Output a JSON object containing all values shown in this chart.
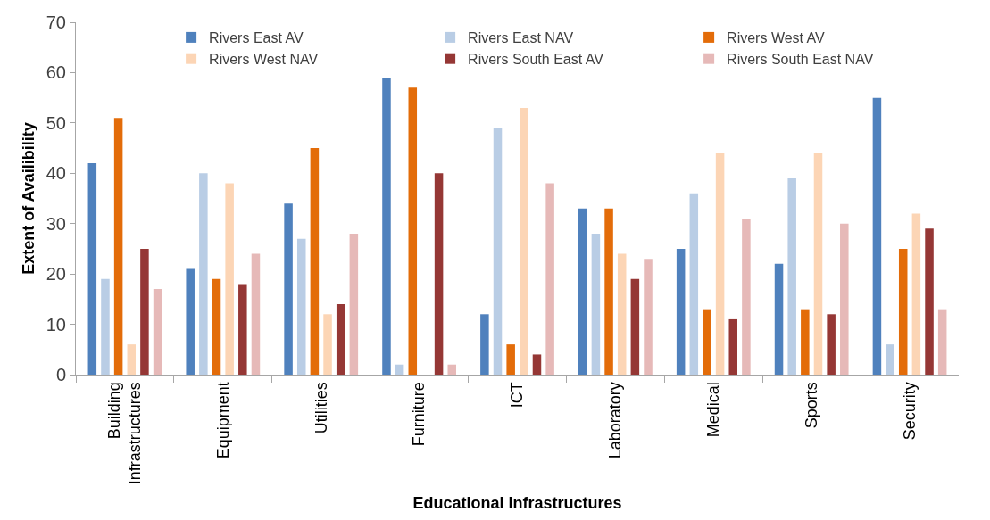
{
  "chart_data": {
    "type": "bar",
    "xlabel": "Educational infrastructures",
    "ylabel": "Extent of Availibility",
    "categories": [
      "Building Infrastructures",
      "Equipment",
      "Utilities",
      "Furniture",
      "ICT",
      "Laboratory",
      "Medical",
      "Sports",
      "Security"
    ],
    "series": [
      {
        "name": "Rivers East AV",
        "color": "#4f81bd",
        "values": [
          42,
          21,
          34,
          59,
          12,
          33,
          25,
          22,
          55
        ]
      },
      {
        "name": "Rivers East NAV",
        "color": "#b9cde5",
        "values": [
          19,
          40,
          27,
          2,
          49,
          28,
          36,
          39,
          6
        ]
      },
      {
        "name": "Rivers West AV",
        "color": "#e36c09",
        "values": [
          51,
          19,
          45,
          57,
          6,
          33,
          13,
          13,
          25
        ]
      },
      {
        "name": "Rivers West NAV",
        "color": "#fcd5b5",
        "values": [
          6,
          38,
          12,
          0,
          53,
          24,
          44,
          44,
          32
        ]
      },
      {
        "name": "Rivers South East AV",
        "color": "#953735",
        "values": [
          25,
          18,
          14,
          40,
          4,
          19,
          11,
          12,
          29
        ]
      },
      {
        "name": "Rivers South East NAV",
        "color": "#e6b9b8",
        "values": [
          17,
          24,
          28,
          2,
          38,
          23,
          31,
          30,
          13
        ]
      }
    ],
    "ylim": [
      0,
      70
    ],
    "yticks": [
      0,
      10,
      20,
      30,
      40,
      50,
      60,
      70
    ],
    "legend": "top right"
  }
}
